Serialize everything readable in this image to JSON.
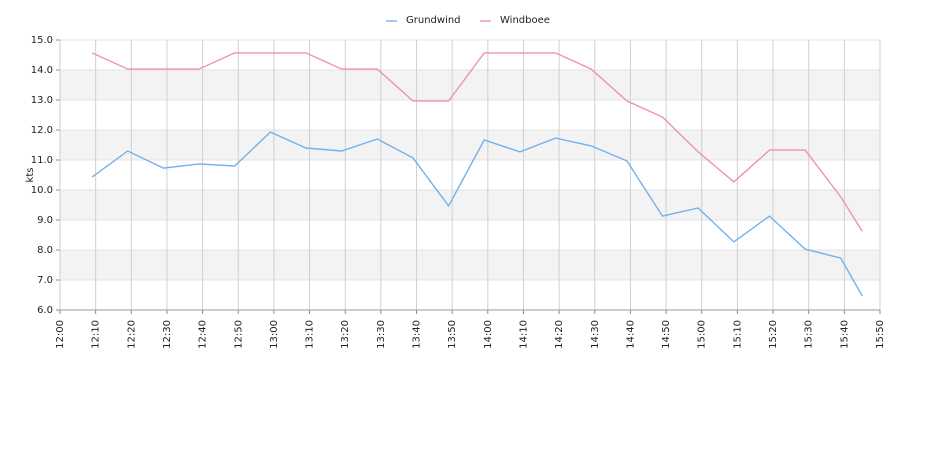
{
  "chart_data": {
    "type": "line",
    "y_label": "kts",
    "x": [
      "12:09",
      "12:19",
      "12:29",
      "12:39",
      "12:49",
      "12:59",
      "13:09",
      "13:19",
      "13:29",
      "13:39",
      "13:49",
      "13:59",
      "14:09",
      "14:19",
      "14:29",
      "14:39",
      "14:49",
      "14:59",
      "15:09",
      "15:19",
      "15:29",
      "15:39",
      "15:45"
    ],
    "series": [
      {
        "name": "Grundwind",
        "color": "#74b1ec",
        "values": [
          10.43,
          11.3,
          10.73,
          10.87,
          10.8,
          11.93,
          11.4,
          11.3,
          11.7,
          11.07,
          9.47,
          11.67,
          11.27,
          11.73,
          11.47,
          10.97,
          9.13,
          9.4,
          8.27,
          9.13,
          8.03,
          7.73,
          6.47
        ]
      },
      {
        "name": "Windboee",
        "color": "#ef8fbf",
        "values": [
          14.57,
          14.03,
          14.03,
          14.03,
          14.57,
          14.57,
          14.57,
          14.03,
          14.03,
          12.97,
          12.97,
          14.57,
          14.57,
          14.57,
          14.03,
          12.97,
          12.43,
          11.27,
          10.27,
          11.33,
          11.33,
          9.77,
          8.63
        ]
      }
    ],
    "xlim": [
      "12:00",
      "15:50"
    ],
    "xticks": [
      "12:00",
      "12:10",
      "12:20",
      "12:30",
      "12:40",
      "12:50",
      "13:00",
      "13:10",
      "13:20",
      "13:30",
      "13:40",
      "13:50",
      "14:00",
      "14:10",
      "14:20",
      "14:30",
      "14:40",
      "14:50",
      "15:00",
      "15:10",
      "15:20",
      "15:30",
      "15:40",
      "15:50"
    ],
    "ylim": [
      6,
      15
    ],
    "yticks": [
      {
        "value": 6,
        "label": "6.0"
      },
      {
        "value": 7,
        "label": "7.0"
      },
      {
        "value": 8,
        "label": "8.0"
      },
      {
        "value": 9,
        "label": "9.0"
      },
      {
        "value": 10,
        "label": "10.0"
      },
      {
        "value": 11,
        "label": "11.0"
      },
      {
        "value": 12,
        "label": "12.0"
      },
      {
        "value": 13,
        "label": "13.0"
      },
      {
        "value": 14,
        "label": "14.0"
      },
      {
        "value": 15,
        "label": "15.0"
      }
    ],
    "grid": true,
    "alternate_bands": true,
    "legend": "top"
  }
}
